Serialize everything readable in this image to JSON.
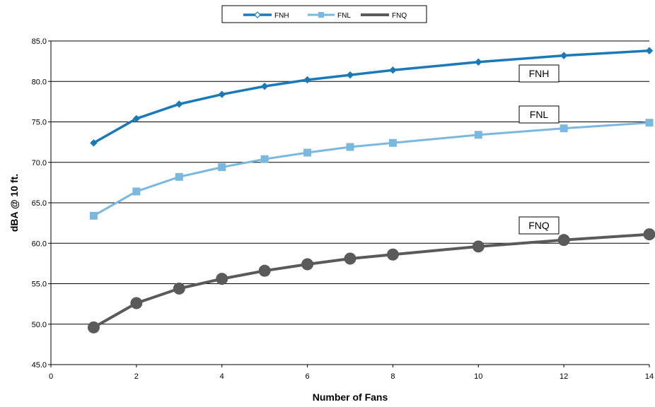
{
  "chart_data": {
    "type": "line",
    "xlabel": "Number of Fans",
    "ylabel": "dBA @ 10 ft.",
    "xlim": [
      0,
      14
    ],
    "ylim": [
      45,
      85
    ],
    "x_ticks": [
      "0",
      "2",
      "4",
      "6",
      "8",
      "10",
      "12",
      "14"
    ],
    "x_tick_values": [
      0,
      2,
      4,
      6,
      8,
      10,
      12,
      14
    ],
    "y_ticks": [
      "45.0",
      "50.0",
      "55.0",
      "60.0",
      "65.0",
      "70.0",
      "75.0",
      "80.0",
      "85.0"
    ],
    "y_tick_values": [
      45,
      50,
      55,
      60,
      65,
      70,
      75,
      80,
      85
    ],
    "grid": "horizontal",
    "legend_position": "top-center",
    "x": [
      1,
      2,
      3,
      4,
      5,
      6,
      7,
      8,
      10,
      12,
      14
    ],
    "series": [
      {
        "name": "FNH",
        "color": "#1a7ab8",
        "marker": "diamond",
        "label": "FNH",
        "values": [
          72.4,
          75.4,
          77.2,
          78.4,
          79.4,
          80.2,
          80.8,
          81.4,
          82.4,
          83.2,
          83.8
        ]
      },
      {
        "name": "FNL",
        "color": "#7ab8dd",
        "marker": "square",
        "label": "FNL",
        "values": [
          63.4,
          66.4,
          68.2,
          69.4,
          70.4,
          71.2,
          71.9,
          72.4,
          73.4,
          74.2,
          74.9
        ]
      },
      {
        "name": "FNQ",
        "color": "#5a5a5a",
        "marker": "circle",
        "label": "FNQ",
        "values": [
          49.6,
          52.6,
          54.4,
          55.6,
          56.6,
          57.4,
          58.1,
          58.6,
          59.6,
          60.4,
          61.1
        ]
      }
    ]
  }
}
